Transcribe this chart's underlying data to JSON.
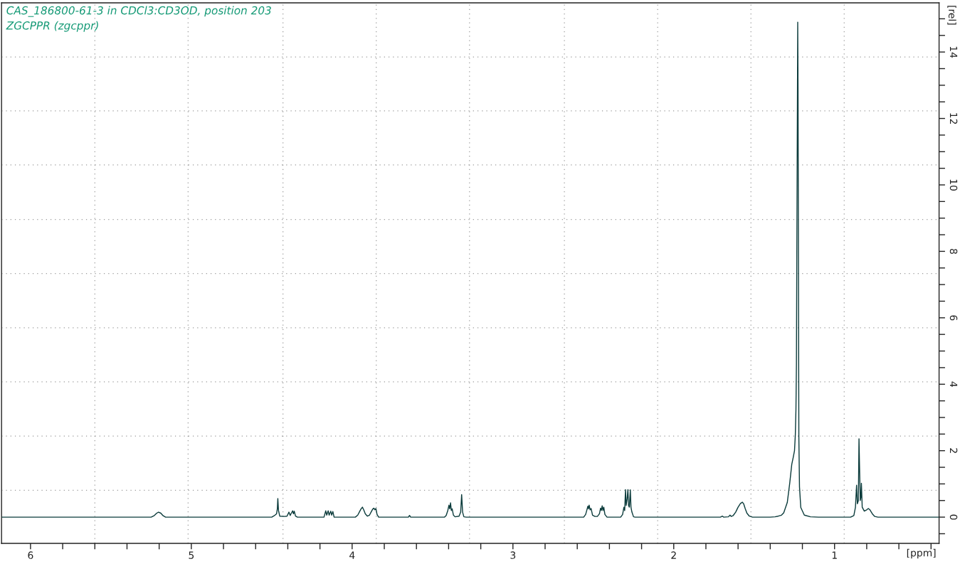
{
  "chart_data": {
    "type": "line",
    "title": "CAS_186800-61-3 in CDCl3:CD3OD, position 203",
    "subtitle": "ZGCPPR (zgcppr)",
    "xlabel": "[ppm]",
    "ylabel": "[rel]",
    "xlim": [
      6.18,
      0.35
    ],
    "ylim": [
      -0.79,
      15.48
    ],
    "xticks": [
      6,
      {
        "value": 5.8,
        "label": null
      },
      {
        "value": 5.6,
        "label": null
      },
      {
        "value": 5.4,
        "label": null
      },
      {
        "value": 5.2,
        "label": null
      },
      5,
      {
        "value": 4.8,
        "label": null
      },
      {
        "value": 4.6,
        "label": null
      },
      {
        "value": 4.4,
        "label": null
      },
      {
        "value": 4.2,
        "label": null
      },
      4,
      {
        "value": 3.8,
        "label": null
      },
      {
        "value": 3.6,
        "label": null
      },
      {
        "value": 3.4,
        "label": null
      },
      {
        "value": 3.2,
        "label": null
      },
      3,
      {
        "value": 2.8,
        "label": null
      },
      {
        "value": 2.6,
        "label": null
      },
      {
        "value": 2.4,
        "label": null
      },
      {
        "value": 2.2,
        "label": null
      },
      2,
      {
        "value": 1.8,
        "label": null
      },
      {
        "value": 1.6,
        "label": null
      },
      {
        "value": 1.4,
        "label": null
      },
      {
        "value": 1.2,
        "label": null
      },
      1,
      {
        "value": 0.8,
        "label": null
      },
      {
        "value": 0.6,
        "label": null
      },
      {
        "value": 0.4,
        "label": null
      }
    ],
    "yticks": [
      {
        "value": -0.5,
        "label": null
      },
      0,
      {
        "value": 0.5,
        "label": null
      },
      {
        "value": 1,
        "label": null
      },
      {
        "value": 1.5,
        "label": null
      },
      2,
      {
        "value": 2.5,
        "label": null
      },
      {
        "value": 3,
        "label": null
      },
      {
        "value": 3.5,
        "label": null
      },
      4,
      {
        "value": 4.5,
        "label": null
      },
      {
        "value": 5,
        "label": null
      },
      {
        "value": 5.5,
        "label": null
      },
      6,
      {
        "value": 6.5,
        "label": null
      },
      {
        "value": 7,
        "label": null
      },
      {
        "value": 7.5,
        "label": null
      },
      8,
      {
        "value": 8.5,
        "label": null
      },
      {
        "value": 9,
        "label": null
      },
      {
        "value": 9.5,
        "label": null
      },
      10,
      {
        "value": 10.5,
        "label": null
      },
      {
        "value": 11,
        "label": null
      },
      {
        "value": 11.5,
        "label": null
      },
      12,
      {
        "value": 12.5,
        "label": null
      },
      {
        "value": 13,
        "label": null
      },
      {
        "value": 13.5,
        "label": null
      },
      14,
      {
        "value": 14.5,
        "label": null
      },
      {
        "value": 15,
        "label": null
      }
    ],
    "ref_lines": [
      {
        "axis": "x",
        "value": 5.6,
        "color": "#9a9a9a",
        "line_style": "dotted"
      },
      {
        "axis": "x",
        "value": 5.02,
        "color": "#9a9a9a",
        "line_style": "dotted"
      },
      {
        "axis": "x",
        "value": 4.43,
        "color": "#9a9a9a",
        "line_style": "dotted"
      },
      {
        "axis": "x",
        "value": 3.85,
        "color": "#9a9a9a",
        "line_style": "dotted"
      },
      {
        "axis": "x",
        "value": 3.27,
        "color": "#9a9a9a",
        "line_style": "dotted"
      },
      {
        "axis": "x",
        "value": 2.68,
        "color": "#9a9a9a",
        "line_style": "dotted"
      },
      {
        "axis": "x",
        "value": 2.1,
        "color": "#9a9a9a",
        "line_style": "dotted"
      },
      {
        "axis": "x",
        "value": 1.52,
        "color": "#9a9a9a",
        "line_style": "dotted"
      },
      {
        "axis": "x",
        "value": 0.94,
        "color": "#9a9a9a",
        "line_style": "dotted"
      },
      {
        "axis": "y",
        "value": 0.81,
        "color": "#9a9a9a",
        "line_style": "dotted"
      },
      {
        "axis": "y",
        "value": 2.44,
        "color": "#9a9a9a",
        "line_style": "dotted"
      },
      {
        "axis": "y",
        "value": 4.07,
        "color": "#9a9a9a",
        "line_style": "dotted"
      },
      {
        "axis": "y",
        "value": 5.7,
        "color": "#9a9a9a",
        "line_style": "dotted"
      },
      {
        "axis": "y",
        "value": 7.33,
        "color": "#9a9a9a",
        "line_style": "dotted"
      },
      {
        "axis": "y",
        "value": 8.96,
        "color": "#9a9a9a",
        "line_style": "dotted"
      },
      {
        "axis": "y",
        "value": 10.6,
        "color": "#9a9a9a",
        "line_style": "dotted"
      },
      {
        "axis": "y",
        "value": 12.23,
        "color": "#9a9a9a",
        "line_style": "dotted"
      },
      {
        "axis": "y",
        "value": 13.85,
        "color": "#9a9a9a",
        "line_style": "dotted"
      }
    ],
    "series": [
      {
        "color": "#0b3b3b",
        "x": [
          6.18,
          5.25,
          5.23,
          5.215,
          5.204,
          5.19,
          5.175,
          5.16,
          4.5,
          4.485,
          4.47,
          4.465,
          4.462,
          4.458,
          4.45,
          4.42,
          4.405,
          4.393,
          4.385,
          4.378,
          4.37,
          4.365,
          4.36,
          4.352,
          4.34,
          4.175,
          4.164,
          4.158,
          4.149,
          4.143,
          4.133,
          4.127,
          4.12,
          4.112,
          3.98,
          3.965,
          3.952,
          3.944,
          3.936,
          3.928,
          3.918,
          3.905,
          3.892,
          3.88,
          3.872,
          3.865,
          3.858,
          3.852,
          3.845,
          3.835,
          3.65,
          3.643,
          3.636,
          3.425,
          3.415,
          3.405,
          3.398,
          3.393,
          3.388,
          3.383,
          3.378,
          3.37,
          3.36,
          3.335,
          3.325,
          3.319,
          3.313,
          3.305,
          3.29,
          2.56,
          2.548,
          2.54,
          2.534,
          2.53,
          2.526,
          2.52,
          2.514,
          2.505,
          2.49,
          2.475,
          2.462,
          2.455,
          2.45,
          2.445,
          2.44,
          2.435,
          2.428,
          2.415,
          2.33,
          2.318,
          2.31,
          2.305,
          2.3,
          2.296,
          2.29,
          2.285,
          2.281,
          2.276,
          2.27,
          2.266,
          2.26,
          2.25,
          2.24,
          1.71,
          1.697,
          1.69,
          1.66,
          1.65,
          1.643,
          1.63,
          1.615,
          1.6,
          1.585,
          1.573,
          1.565,
          1.555,
          1.545,
          1.53,
          1.51,
          1.4,
          1.37,
          1.35,
          1.33,
          1.316,
          1.294,
          1.279,
          1.266,
          1.257,
          1.249,
          1.244,
          1.24,
          1.237,
          1.234,
          1.229,
          1.227,
          1.225,
          1.222,
          1.218,
          1.21,
          1.188,
          1.15,
          1.1,
          0.9,
          0.88,
          0.87,
          0.863,
          0.858,
          0.852,
          0.848,
          0.845,
          0.84,
          0.836,
          0.833,
          0.828,
          0.815,
          0.8,
          0.79,
          0.78,
          0.765,
          0.75,
          0.73,
          0.35
        ],
        "values": [
          0,
          0,
          0.05,
          0.12,
          0.15,
          0.12,
          0.04,
          0,
          0,
          0.04,
          0.1,
          0.25,
          0.56,
          0.2,
          0.03,
          0.02,
          0.03,
          0.15,
          0.05,
          0.12,
          0.19,
          0.1,
          0.18,
          0.03,
          0,
          0,
          0.19,
          0.06,
          0.19,
          0.06,
          0.18,
          0.06,
          0.17,
          0,
          0,
          0.06,
          0.18,
          0.25,
          0.3,
          0.22,
          0.1,
          0.03,
          0.06,
          0.17,
          0.24,
          0.27,
          0.22,
          0.26,
          0.08,
          0,
          0,
          0.05,
          0,
          0,
          0.05,
          0.2,
          0.36,
          0.25,
          0.43,
          0.2,
          0.25,
          0.06,
          0.01,
          0.03,
          0.15,
          0.68,
          0.15,
          0.01,
          0,
          0,
          0.08,
          0.22,
          0.33,
          0.25,
          0.36,
          0.22,
          0.26,
          0.06,
          0.02,
          0.02,
          0.1,
          0.27,
          0.2,
          0.34,
          0.2,
          0.3,
          0.08,
          0,
          0,
          0.08,
          0.3,
          0.2,
          0.83,
          0.35,
          0.55,
          0.83,
          0.35,
          0.3,
          0.82,
          0.3,
          0.15,
          0.01,
          0,
          0,
          0.03,
          0,
          0.01,
          0.06,
          0.02,
          0.05,
          0.15,
          0.3,
          0.41,
          0.45,
          0.4,
          0.25,
          0.12,
          0.03,
          0,
          0,
          0.01,
          0.03,
          0.06,
          0.13,
          0.44,
          1.01,
          1.59,
          1.8,
          2,
          2.47,
          3.25,
          4.63,
          8.76,
          14.9,
          12.8,
          8.76,
          2.42,
          0.91,
          0.29,
          0.06,
          0.01,
          0,
          0,
          0.05,
          0.3,
          0.96,
          0.4,
          0.5,
          2.36,
          1.6,
          0.5,
          0.6,
          1.02,
          0.3,
          0.18,
          0.22,
          0.26,
          0.22,
          0.1,
          0.02,
          0,
          0
        ]
      }
    ]
  }
}
